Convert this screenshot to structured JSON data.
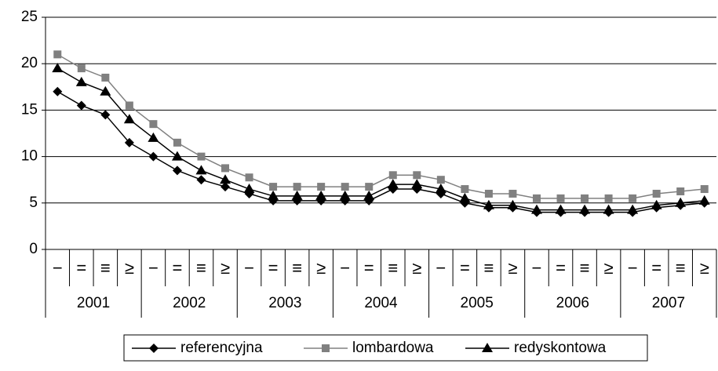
{
  "chart_data": {
    "type": "line",
    "categories": [
      "−",
      "=",
      "≡",
      "≥",
      "−",
      "=",
      "≡",
      "≥",
      "−",
      "=",
      "≡",
      "≥",
      "−",
      "=",
      "≡",
      "≥",
      "−",
      "=",
      "≡",
      "≥",
      "−",
      "=",
      "≡",
      "≥",
      "−",
      "=",
      "≡",
      "≥"
    ],
    "years": [
      "2001",
      "2002",
      "2003",
      "2004",
      "2005",
      "2006",
      "2007"
    ],
    "series": [
      {
        "name": "referencyjna",
        "color": "#000000",
        "marker": "diamond",
        "values": [
          17,
          15.5,
          14.5,
          11.5,
          10,
          8.5,
          7.5,
          6.75,
          6,
          5.25,
          5.25,
          5.25,
          5.25,
          5.25,
          6.5,
          6.5,
          6,
          5,
          4.5,
          4.5,
          4,
          4,
          4,
          4,
          4,
          4.5,
          4.75,
          5
        ]
      },
      {
        "name": "lombardowa",
        "color": "#808080",
        "marker": "square",
        "values": [
          21,
          19.5,
          18.5,
          15.5,
          13.5,
          11.5,
          10,
          8.75,
          7.75,
          6.75,
          6.75,
          6.75,
          6.75,
          6.75,
          8,
          8,
          7.5,
          6.5,
          6,
          6,
          5.5,
          5.5,
          5.5,
          5.5,
          5.5,
          6,
          6.25,
          6.5
        ]
      },
      {
        "name": "redyskontowa",
        "color": "#000000",
        "marker": "triangle",
        "values": [
          19.5,
          18,
          17,
          14,
          12,
          10,
          8.5,
          7.5,
          6.5,
          5.75,
          5.75,
          5.75,
          5.75,
          5.75,
          7,
          7,
          6.5,
          5.5,
          4.75,
          4.75,
          4.25,
          4.25,
          4.25,
          4.25,
          4.25,
          4.75,
          5,
          5.25
        ]
      }
    ],
    "ylim": [
      0,
      25
    ],
    "yticks": [
      0,
      5,
      10,
      15,
      20,
      25
    ],
    "grid": true,
    "legend": "bottom"
  }
}
